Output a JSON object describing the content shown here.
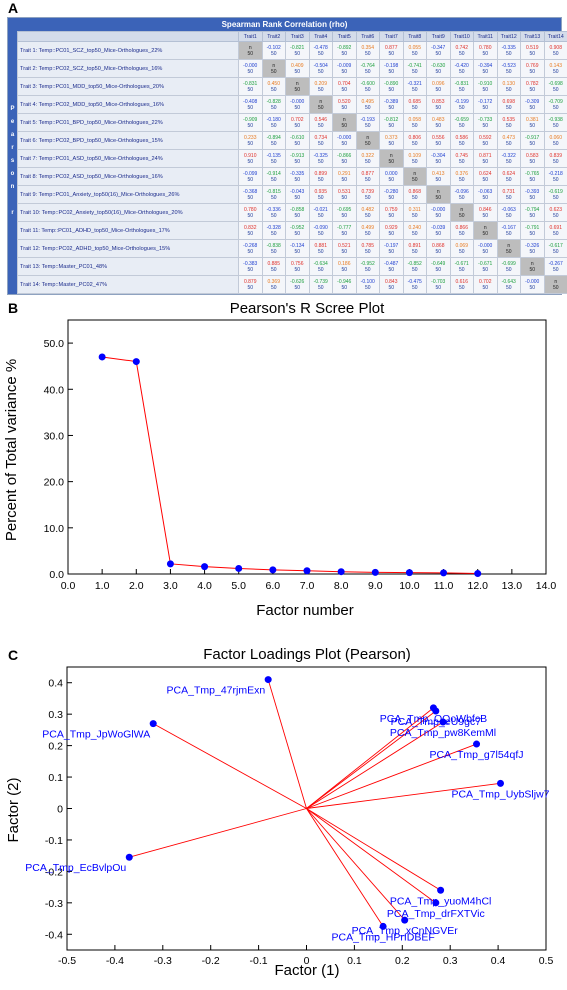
{
  "panels": {
    "a": "A",
    "b": "B",
    "c": "C"
  },
  "table": {
    "title": "Spearman Rank Correlation (rho)",
    "side_label": [
      "P",
      "e",
      "a",
      "r",
      "s",
      "o",
      "n",
      "",
      "r"
    ],
    "columns": [
      "Trait1",
      "Trait2",
      "Trait3",
      "Trait4",
      "Trait5",
      "Trait6",
      "Trait7",
      "Trait8",
      "Trait9",
      "Trait10",
      "Trait11",
      "Trait12",
      "Trait13",
      "Trait14"
    ],
    "rows": [
      {
        "label": "Trait 1: Temp::PC01_SCZ_top50_Mice-Orthologues_22%",
        "values": [
          "n",
          "-0.102",
          "-0.821",
          "-0.478",
          "-0.892",
          "0.354",
          "0.877",
          "0.055",
          "-0.347",
          "0.742",
          "0.780",
          "-0.335",
          "0.519",
          "0.908"
        ]
      },
      {
        "label": "Trait 2: Temp::PC02_SCZ_top50_Mice-Orthologues_16%",
        "values": [
          "-0.000",
          "n",
          "0.409",
          "-0.504",
          "-0.009",
          "-0.764",
          "-0.198",
          "-0.741",
          "-0.630",
          "-0.420",
          "-0.394",
          "-0.523",
          "0.769",
          "0.143"
        ]
      },
      {
        "label": "Trait 3: Temp::PC01_MDD_top50_Mice-Orthologues_20%",
        "values": [
          "-0.831",
          "0.450",
          "n",
          "0.209",
          "0.704",
          "-0.600",
          "-0.890",
          "-0.321",
          "0.096",
          "-0.831",
          "-0.910",
          "0.130",
          "0.782",
          "-0.698"
        ]
      },
      {
        "label": "Trait 4: Temp::PC02_MDD_top50_Mice-Orthologues_16%",
        "values": [
          "-0.408",
          "-0.828",
          "-0.000",
          "n",
          "0.520",
          "0.495",
          "-0.389",
          "0.685",
          "0.853",
          "-0.199",
          "-0.172",
          "0.698",
          "-0.309",
          "-0.709"
        ]
      },
      {
        "label": "Trait 5: Temp::PC01_BPD_top50_Mice-Orthologues_22%",
        "values": [
          "-0.909",
          "-0.180",
          "0.702",
          "0.546",
          "n",
          "-0.193",
          "-0.812",
          "0.058",
          "0.483",
          "-0.659",
          "-0.733",
          "0.535",
          "0.381",
          "-0.938"
        ]
      },
      {
        "label": "Trait 6: Temp::PC02_BPD_top50_Mice-Orthologues_15%",
        "values": [
          "0.233",
          "-0.894",
          "-0.610",
          "0.734",
          "-0.000",
          "n",
          "0.373",
          "0.806",
          "0.556",
          "0.586",
          "0.592",
          "0.473",
          "-0.917",
          "0.060"
        ]
      },
      {
        "label": "Trait 7: Temp::PC01_ASD_top50_Mice-Orthologues_24%",
        "values": [
          "0.910",
          "-0.135",
          "-0.913",
          "-0.325",
          "-0.866",
          "0.322",
          "n",
          "0.109",
          "-0.304",
          "0.745",
          "0.871",
          "-0.322",
          "0.583",
          "0.839"
        ]
      },
      {
        "label": "Trait 8: Temp::PC02_ASD_top50_Mice-Orthologues_16%",
        "values": [
          "-0.099",
          "-0.914",
          "-0.335",
          "0.899",
          "0.291",
          "0.877",
          "0.000",
          "n",
          "0.413",
          "0.376",
          "0.624",
          "0.624",
          "-0.765",
          "-0.218"
        ]
      },
      {
        "label": "Trait 9: Temp::PC01_Anxiety_top50(16)_Mice-Orthologues_26%",
        "values": [
          "-0.368",
          "-0.815",
          "-0.043",
          "0.935",
          "0.531",
          "0.739",
          "-0.280",
          "0.868",
          "n",
          "-0.096",
          "-0.063",
          "0.731",
          "-0.393",
          "-0.619"
        ]
      },
      {
        "label": "Trait 10: Temp::PC02_Anxiety_top50(16)_Mice-Orthologues_20%",
        "values": [
          "0.780",
          "-0.336",
          "-0.858",
          "-0.021",
          "-0.695",
          "0.482",
          "0.759",
          "0.311",
          "-0.000",
          "n",
          "0.846",
          "-0.063",
          "-0.794",
          "0.623"
        ]
      },
      {
        "label": "Trait 11: Temp::PC01_ADHD_top50_Mice-Orthologues_17%",
        "values": [
          "0.832",
          "-0.328",
          "-0.952",
          "-0.090",
          "-0.777",
          "0.499",
          "0.929",
          "0.240",
          "-0.039",
          "0.866",
          "n",
          "-0.167",
          "-0.791",
          "0.691"
        ]
      },
      {
        "label": "Trait 12: Temp::PC02_ADHD_top50_Mice-Orthologues_15%",
        "values": [
          "-0.268",
          "-0.838",
          "-0.134",
          "0.881",
          "0.521",
          "0.785",
          "-0.197",
          "0.891",
          "0.868",
          "0.069",
          "-0.000",
          "n",
          "-0.326",
          "-0.617"
        ]
      },
      {
        "label": "Trait 13: Temp::Master_PC01_48%",
        "values": [
          "-0.383",
          "0.885",
          "0.756",
          "-0.634",
          "0.186",
          "-0.952",
          "-0.487",
          "-0.852",
          "-0.649",
          "-0.671",
          "-0.671",
          "-0.699",
          "n",
          "-0.267"
        ]
      },
      {
        "label": "Trait 14: Temp::Master_PC02_47%",
        "values": [
          "0.879",
          "0.369",
          "-0.626",
          "-0.739",
          "-0.946",
          "-0.100",
          "0.843",
          "-0.475",
          "-0.703",
          "0.616",
          "0.702",
          "-0.643",
          "-0.000",
          "n"
        ]
      }
    ],
    "n_value": "50",
    "colors": {
      "positive": "#e0302a",
      "negative": "#1f3fd0",
      "strong_negative": "#1fa040",
      "moderate": "#e87a20"
    }
  },
  "chart_data": [
    {
      "type": "line",
      "title": "Pearson's R Scree Plot",
      "xlabel": "Factor number",
      "ylabel": "Percent of Total variance %",
      "xlim": [
        0,
        14
      ],
      "ylim": [
        0,
        55
      ],
      "xticks": [
        "0.0",
        "1.0",
        "2.0",
        "3.0",
        "4.0",
        "5.0",
        "6.0",
        "7.0",
        "8.0",
        "9.0",
        "10.0",
        "11.0",
        "12.0",
        "13.0",
        "14.0"
      ],
      "yticks": [
        "0.0",
        "10.0",
        "20.0",
        "30.0",
        "40.0",
        "50.0"
      ],
      "series": [
        {
          "x": [
            1,
            2,
            3,
            4,
            5,
            6,
            7,
            8,
            9,
            10,
            11,
            12
          ],
          "values": [
            47.0,
            46.0,
            2.2,
            1.6,
            1.2,
            0.9,
            0.7,
            0.5,
            0.35,
            0.3,
            0.25,
            0.1
          ]
        }
      ],
      "line_color": "#ff0000",
      "marker_color": "#0000ff",
      "grid": false
    },
    {
      "type": "scatter",
      "title": "Factor Loadings Plot (Pearson)",
      "xlabel": "Factor (1)",
      "ylabel": "Factor (2)",
      "xlim": [
        -0.5,
        0.5
      ],
      "ylim": [
        -0.45,
        0.45
      ],
      "xticks": [
        "-0.5",
        "-0.4",
        "-0.3",
        "-0.2",
        "-0.1",
        "0",
        "0.1",
        "0.2",
        "0.3",
        "0.4",
        "0.5"
      ],
      "yticks": [
        "-0.4",
        "-0.3",
        "-0.2",
        "-0.1",
        "0",
        "0.1",
        "0.2",
        "0.3",
        "0.4"
      ],
      "points": [
        {
          "label": "PCA_Tmp_47rjmExn",
          "x": -0.08,
          "y": 0.41
        },
        {
          "label": "PCA_Tmp_JpWoGlWA",
          "x": -0.32,
          "y": 0.27
        },
        {
          "label": "PCA_Tmp_EcBvlpOu",
          "x": -0.37,
          "y": -0.155
        },
        {
          "label": "PCA_Tmp_OQoWbfcB",
          "x": 0.265,
          "y": 0.32
        },
        {
          "label": "PCA_Tmp_eU9gc7",
          "x": 0.27,
          "y": 0.31
        },
        {
          "label": "PCA_Tmp_pw8KemMl",
          "x": 0.285,
          "y": 0.275
        },
        {
          "label": "PCA_Tmp_g7l54qfJ",
          "x": 0.355,
          "y": 0.205
        },
        {
          "label": "PCA_Tmp_UybSljw7",
          "x": 0.405,
          "y": 0.08
        },
        {
          "label": "PCA_Tmp_yuoM4hCl",
          "x": 0.28,
          "y": -0.26
        },
        {
          "label": "PCA_Tmp_drFXTVic",
          "x": 0.27,
          "y": -0.3
        },
        {
          "label": "PCA_Tmp_xCnNGVEr",
          "x": 0.205,
          "y": -0.355
        },
        {
          "label": "PCA_Tmp_HPrIDBEF",
          "x": 0.16,
          "y": -0.375
        }
      ],
      "line_color": "#ff0000",
      "marker_color": "#0000ff",
      "label_color": "#0000ff",
      "grid": false
    }
  ]
}
